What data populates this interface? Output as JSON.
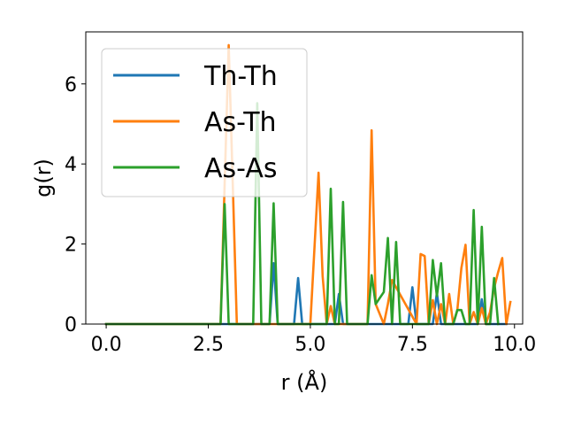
{
  "chart_data": {
    "type": "line",
    "xlabel": "r (Å)",
    "ylabel": "g(r)",
    "xlim": [
      -0.5,
      10.2
    ],
    "ylim": [
      0,
      7.3
    ],
    "xticks": [
      0.0,
      2.5,
      5.0,
      7.5,
      10.0
    ],
    "xtick_labels": [
      "0.0",
      "2.5",
      "5.0",
      "7.5",
      "10.0"
    ],
    "yticks": [
      0,
      2,
      4,
      6
    ],
    "ytick_labels": [
      "0",
      "2",
      "4",
      "6"
    ],
    "grid": false,
    "legend_position": "top-left",
    "series": [
      {
        "name": "Th-Th",
        "color": "#1f77b4",
        "x": [
          0,
          2.9,
          4.0,
          4.1,
          4.2,
          4.6,
          4.7,
          4.8,
          5.6,
          5.7,
          5.8,
          7.4,
          7.5,
          7.6,
          8.0,
          8.1,
          8.2,
          9.1,
          9.2,
          9.3,
          9.8
        ],
        "y": [
          0,
          0,
          0,
          1.52,
          0,
          0,
          1.15,
          0,
          0,
          0.75,
          0,
          0,
          0.92,
          0,
          0,
          0.78,
          0,
          0,
          0.62,
          0,
          0
        ]
      },
      {
        "name": "As-Th",
        "color": "#ff7f0e",
        "x": [
          0,
          2.8,
          3.0,
          3.1,
          3.2,
          5.0,
          5.2,
          5.3,
          5.4,
          5.5,
          5.6,
          6.4,
          6.5,
          6.6,
          6.8,
          6.9,
          7.0,
          7.6,
          7.7,
          7.8,
          7.9,
          8.0,
          8.1,
          8.2,
          8.3,
          8.4,
          8.5,
          8.6,
          8.7,
          8.8,
          8.9,
          9.0,
          9.1,
          9.2,
          9.3,
          9.4,
          9.5,
          9.6,
          9.7,
          9.8,
          9.9
        ],
        "y": [
          0,
          0,
          6.97,
          3.5,
          0,
          0,
          3.78,
          1.2,
          0,
          0.45,
          0,
          0,
          4.84,
          0.5,
          0,
          0.5,
          1.1,
          0,
          1.75,
          1.7,
          0,
          0.6,
          0,
          0.5,
          0,
          0.75,
          0,
          0.35,
          1.4,
          1.98,
          0,
          0.3,
          0,
          0.4,
          0,
          0.3,
          0.9,
          1.3,
          1.65,
          0,
          0.55
        ]
      },
      {
        "name": "As-As",
        "color": "#2ca02c",
        "x": [
          0,
          2.8,
          2.9,
          3.0,
          3.6,
          3.7,
          3.8,
          4.0,
          4.1,
          4.2,
          5.4,
          5.5,
          5.6,
          5.7,
          5.8,
          5.9,
          6.4,
          6.5,
          6.6,
          6.8,
          6.9,
          7.0,
          7.1,
          7.2,
          7.9,
          8.0,
          8.1,
          8.2,
          8.3,
          8.5,
          8.6,
          8.7,
          8.8,
          8.9,
          9.0,
          9.1,
          9.2,
          9.3,
          9.4,
          9.5,
          9.6
        ],
        "y": [
          0,
          0,
          3.0,
          0,
          0,
          5.52,
          0,
          0,
          3.02,
          0,
          0,
          3.38,
          0,
          0,
          3.05,
          0,
          0,
          1.22,
          0.5,
          0.8,
          2.15,
          0,
          2.05,
          0,
          0,
          1.6,
          0.7,
          1.52,
          0,
          0,
          0.35,
          0.35,
          0,
          0,
          2.85,
          0,
          2.43,
          0,
          0,
          1.15,
          0
        ]
      }
    ]
  }
}
